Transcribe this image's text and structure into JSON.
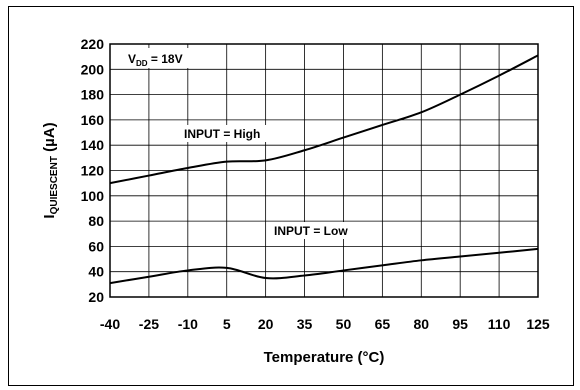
{
  "chart_data": {
    "type": "line",
    "xlabel": "Temperature (°C)",
    "ylabel": {
      "main": "I",
      "sub": "QUIESCENT",
      "unit": " (µA)"
    },
    "x_ticks": [
      -40,
      -25,
      -10,
      5,
      20,
      35,
      50,
      65,
      80,
      95,
      110,
      125
    ],
    "y_ticks": [
      20,
      40,
      60,
      80,
      100,
      120,
      140,
      160,
      180,
      200,
      220
    ],
    "xlim": [
      -40,
      125
    ],
    "ylim": [
      20,
      220
    ],
    "grid": true,
    "condition": {
      "main": "V",
      "sub": "DD",
      "value": " = 18V"
    },
    "series": [
      {
        "name": "INPUT = High",
        "x": [
          -40,
          -25,
          -10,
          5,
          20,
          35,
          50,
          65,
          80,
          95,
          110,
          125
        ],
        "y": [
          110,
          116,
          122,
          127,
          128,
          136,
          146,
          156,
          166,
          180,
          195,
          211
        ]
      },
      {
        "name": "INPUT = Low",
        "x": [
          -40,
          -25,
          -10,
          5,
          20,
          35,
          50,
          65,
          80,
          95,
          110,
          125
        ],
        "y": [
          31,
          36,
          41,
          43,
          35,
          37,
          41,
          45,
          49,
          52,
          55,
          58
        ]
      }
    ]
  }
}
